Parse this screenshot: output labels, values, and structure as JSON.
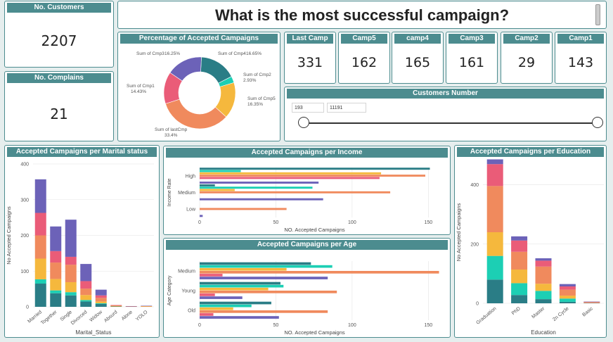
{
  "title": "What is the most successful campaign?",
  "kpis": {
    "customers": {
      "label": "No. Customers",
      "value": "2207"
    },
    "complains": {
      "label": "No. Complains",
      "value": "21"
    }
  },
  "campaign_cards": [
    {
      "label": "Last Camp",
      "value": "331"
    },
    {
      "label": "Camp5",
      "value": "162"
    },
    {
      "label": "camp4",
      "value": "165"
    },
    {
      "label": "Camp3",
      "value": "161"
    },
    {
      "label": "Camp2",
      "value": "29"
    },
    {
      "label": "Camp1",
      "value": "143"
    }
  ],
  "slicer": {
    "title": "Customers Number",
    "min_value": "193",
    "max_value": "11191"
  },
  "colors": {
    "last": "#f08a5d",
    "c5": "#f5b83d",
    "c4": "#2a7d86",
    "c3": "#6c62b8",
    "c2": "#1ccfb4",
    "c1": "#ea5c78"
  },
  "chart_data": [
    {
      "type": "pie",
      "title": "Percentage of Accepted Campaigns",
      "slices": [
        {
          "label": "Sum of Cmp4",
          "pct": "16.65%",
          "value": 16.65,
          "color": "#2a7d86"
        },
        {
          "label": "Sum of Cmp2",
          "pct": "2.93%",
          "value": 2.93,
          "color": "#1ccfb4"
        },
        {
          "label": "Sum of Cmp5",
          "pct": "16.35%",
          "value": 16.35,
          "color": "#f5b83d"
        },
        {
          "label": "Sum of lastCmp",
          "pct": "33.4%",
          "value": 33.4,
          "color": "#f08a5d"
        },
        {
          "label": "Sum of Cmp1",
          "pct": "14.43%",
          "value": 14.43,
          "color": "#ea5c78"
        },
        {
          "label": "Sum of Cmp3",
          "pct": "16.25%",
          "value": 16.25,
          "color": "#6c62b8"
        }
      ]
    },
    {
      "type": "bar",
      "title": "Accepted Campaigns per Marital status",
      "xlabel": "Marital_Status",
      "ylabel": "No Accepted Campaigns",
      "ylim": [
        0,
        400
      ],
      "yticks": [
        0,
        100,
        200,
        300,
        400
      ],
      "categories": [
        "Married",
        "Together",
        "Single",
        "Divorced",
        "Widow",
        "Absurd",
        "Alone",
        "YOLO"
      ],
      "series": [
        {
          "key": "c4",
          "values": [
            65,
            38,
            32,
            15,
            8,
            1,
            0,
            0
          ]
        },
        {
          "key": "c2",
          "values": [
            12,
            8,
            9,
            4,
            2,
            0,
            0,
            0
          ]
        },
        {
          "key": "c5",
          "values": [
            58,
            32,
            28,
            14,
            5,
            1,
            0,
            1
          ]
        },
        {
          "key": "last",
          "values": [
            65,
            46,
            49,
            18,
            10,
            2,
            1,
            1
          ]
        },
        {
          "key": "c1",
          "values": [
            63,
            32,
            22,
            21,
            7,
            1,
            0,
            0
          ]
        },
        {
          "key": "c3",
          "values": [
            94,
            69,
            104,
            48,
            16,
            0,
            1,
            1
          ]
        }
      ]
    },
    {
      "type": "bar",
      "title": "Accepted Campaigns per Income",
      "xlabel": "NO. Accepted Campaigns",
      "ylabel": "Income Rate",
      "xlim": [
        0,
        160
      ],
      "xticks": [
        0,
        50,
        100,
        150
      ],
      "categories": [
        "High",
        "Medium",
        "Low"
      ],
      "series": [
        {
          "key": "c4",
          "values": [
            151,
            10,
            0
          ]
        },
        {
          "key": "c2",
          "values": [
            27,
            74,
            0
          ]
        },
        {
          "key": "c5",
          "values": [
            119,
            23,
            0
          ]
        },
        {
          "key": "last",
          "values": [
            148,
            125,
            57
          ]
        },
        {
          "key": "c1",
          "values": [
            118,
            0,
            0
          ]
        },
        {
          "key": "c3",
          "values": [
            0,
            0,
            0
          ]
        },
        {
          "key": "c3b",
          "values": [
            78,
            81,
            2
          ]
        }
      ]
    },
    {
      "type": "bar",
      "title": "Accepted Campaigns per Age",
      "xlabel": "NO. Accepted Campaigns",
      "ylabel": "Age Category",
      "xlim": [
        0,
        160
      ],
      "xticks": [
        0,
        50,
        100,
        150
      ],
      "categories": [
        "Medium",
        "Young",
        "Old"
      ],
      "series": [
        {
          "key": "c4",
          "values": [
            73,
            53,
            47
          ]
        },
        {
          "key": "c2",
          "values": [
            87,
            55,
            34
          ]
        },
        {
          "key": "c5",
          "values": [
            57,
            45,
            22
          ]
        },
        {
          "key": "last",
          "values": [
            157,
            90,
            84
          ]
        },
        {
          "key": "c1",
          "values": [
            15,
            10,
            9
          ]
        },
        {
          "key": "c3",
          "values": [
            84,
            28,
            52
          ]
        }
      ]
    },
    {
      "type": "bar",
      "title": "Accepted Campaigns per Education",
      "xlabel": "Education",
      "ylabel": "No Accepted Campaigns",
      "ylim": [
        0,
        480
      ],
      "yticks": [
        0,
        200,
        400
      ],
      "categories": [
        "Graduation",
        "PhD",
        "Master",
        "2n Cycle",
        "Basic"
      ],
      "series": [
        {
          "key": "c4",
          "values": [
            80,
            28,
            14,
            5,
            1
          ]
        },
        {
          "key": "c2",
          "values": [
            80,
            40,
            28,
            11,
            0
          ]
        },
        {
          "key": "c5",
          "values": [
            80,
            46,
            24,
            10,
            0
          ]
        },
        {
          "key": "last",
          "values": [
            156,
            60,
            58,
            20,
            3
          ]
        },
        {
          "key": "c1",
          "values": [
            74,
            38,
            20,
            11,
            1
          ]
        },
        {
          "key": "c3",
          "values": [
            16,
            14,
            8,
            8,
            1
          ]
        }
      ]
    }
  ]
}
